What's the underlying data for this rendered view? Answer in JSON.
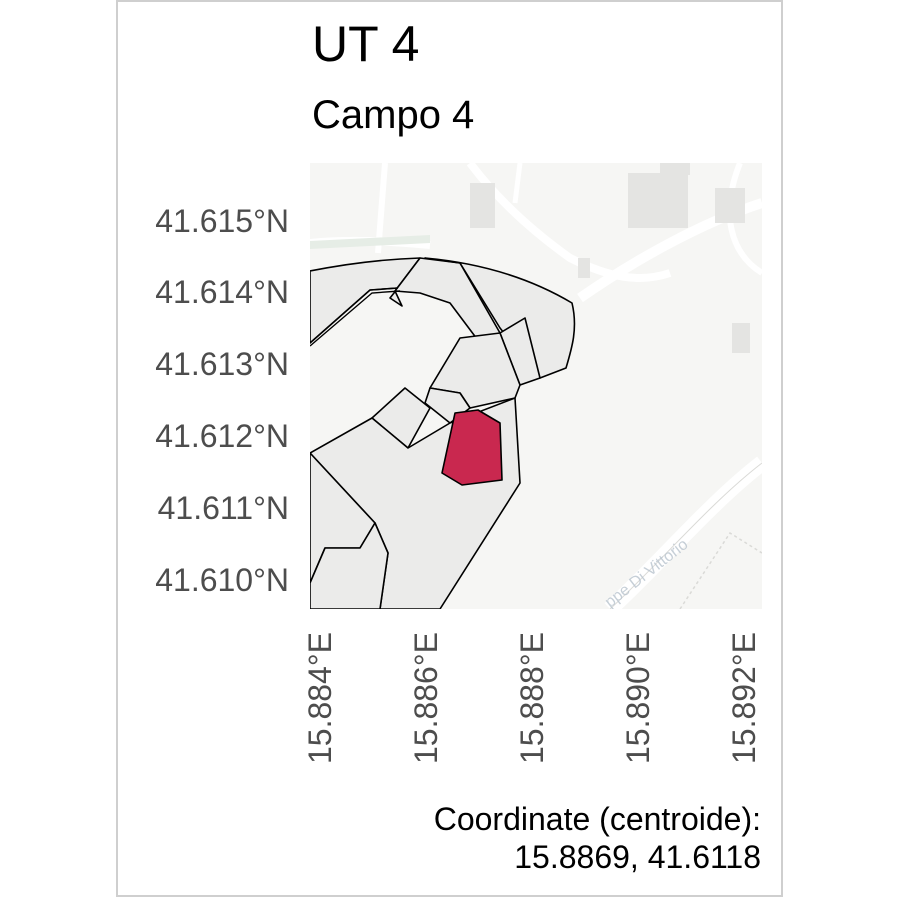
{
  "title": "UT 4",
  "subtitle": "Campo 4",
  "map": {
    "street_label": "ppe Di Vittorio",
    "colors": {
      "basemap": "#f6f6f4",
      "road": "#ffffff",
      "road_edge": "#dadad7",
      "building": "#e4e4e2",
      "parcel_fill": "#ebebea",
      "parcel_stroke": "#000000",
      "highlight": "#c9284f",
      "grass": "#e6ede6"
    }
  },
  "axes": {
    "y_ticks": [
      "41.615°N",
      "41.614°N",
      "41.613°N",
      "41.612°N",
      "41.611°N",
      "41.610°N"
    ],
    "x_ticks": [
      "15.884°E",
      "15.886°E",
      "15.888°E",
      "15.890°E",
      "15.892°E"
    ]
  },
  "caption": {
    "line1": "Coordinate (centroide):",
    "line2": "15.8869, 41.6118"
  }
}
